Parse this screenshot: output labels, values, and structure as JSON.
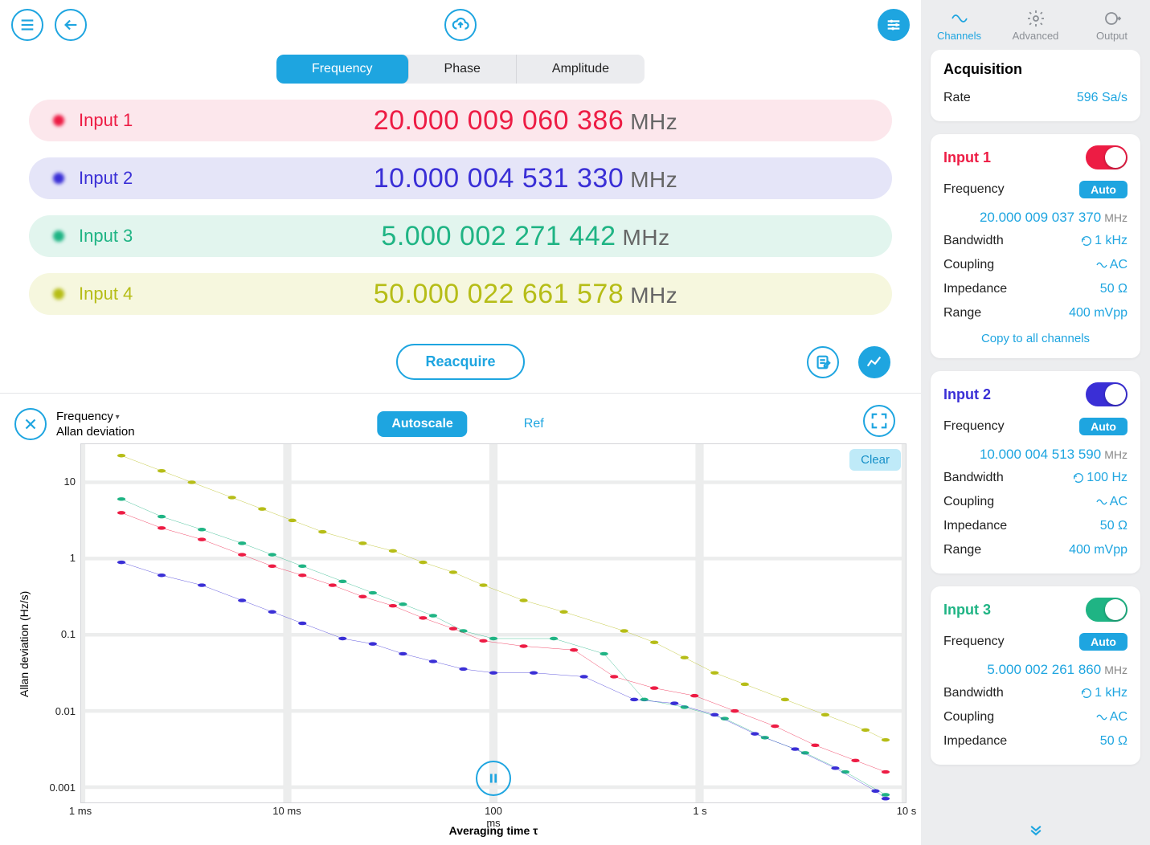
{
  "topbar": {
    "menu_icon": "menu",
    "back_icon": "back",
    "cloud_icon": "cloud-upload",
    "settings_icon": "sliders"
  },
  "tabs": {
    "items": [
      "Frequency",
      "Phase",
      "Amplitude"
    ],
    "active": 0
  },
  "colors": {
    "input1": "#ed1c44",
    "input1_bg": "#fce7ec",
    "input2": "#3a2fd6",
    "input2_bg": "#e5e5f8",
    "input3": "#1fb484",
    "input3_bg": "#e2f5ee",
    "input4": "#b6bd17",
    "input4_bg": "#f6f7de",
    "accent": "#1ea5e0",
    "grid": "#eceded"
  },
  "readings": [
    {
      "label": "Input 1",
      "value": "20.000 009 060 386",
      "unit": "MHz",
      "colorKey": "input1"
    },
    {
      "label": "Input 2",
      "value": "10.000 004 531 330",
      "unit": "MHz",
      "colorKey": "input2"
    },
    {
      "label": "Input 3",
      "value": "5.000 002 271 442",
      "unit": "MHz",
      "colorKey": "input3"
    },
    {
      "label": "Input 4",
      "value": "50.000 022 661 578",
      "unit": "MHz",
      "colorKey": "input4"
    }
  ],
  "reacquire_label": "Reacquire",
  "chart": {
    "selector1": "Frequency",
    "selector2": "Allan deviation",
    "autoscale_label": "Autoscale",
    "ref_label": "Ref",
    "clear_label": "Clear",
    "y_label": "Allan deviation (Hz/s)",
    "x_label": "Averaging time τ",
    "x_ticks": [
      {
        "pos": 0.0,
        "label": "1 ms"
      },
      {
        "pos": 0.25,
        "label": "10 ms"
      },
      {
        "pos": 0.5,
        "label": "100 ms"
      },
      {
        "pos": 0.75,
        "label": "1 s"
      },
      {
        "pos": 1.0,
        "label": "10 s"
      }
    ],
    "y_log_min": -3.2,
    "y_log_max": 1.5,
    "y_ticks": [
      {
        "log": 1,
        "label": "10"
      },
      {
        "log": 0,
        "label": "1"
      },
      {
        "log": -1,
        "label": "0.1"
      },
      {
        "log": -2,
        "label": "0.01"
      },
      {
        "log": -3,
        "label": "0.001"
      }
    ],
    "x_log_min": -3.0,
    "x_log_max": 1.1,
    "series": [
      {
        "colorKey": "input4",
        "points": [
          [
            -2.8,
            1.35
          ],
          [
            -2.6,
            1.15
          ],
          [
            -2.45,
            1.0
          ],
          [
            -2.25,
            0.8
          ],
          [
            -2.1,
            0.65
          ],
          [
            -1.95,
            0.5
          ],
          [
            -1.8,
            0.35
          ],
          [
            -1.6,
            0.2
          ],
          [
            -1.45,
            0.1
          ],
          [
            -1.3,
            -0.05
          ],
          [
            -1.15,
            -0.18
          ],
          [
            -1.0,
            -0.35
          ],
          [
            -0.8,
            -0.55
          ],
          [
            -0.6,
            -0.7
          ],
          [
            -0.3,
            -0.95
          ],
          [
            -0.15,
            -1.1
          ],
          [
            0.0,
            -1.3
          ],
          [
            0.15,
            -1.5
          ],
          [
            0.3,
            -1.65
          ],
          [
            0.5,
            -1.85
          ],
          [
            0.7,
            -2.05
          ],
          [
            0.9,
            -2.25
          ],
          [
            1.0,
            -2.38
          ]
        ]
      },
      {
        "colorKey": "input3",
        "points": [
          [
            -2.8,
            0.78
          ],
          [
            -2.6,
            0.55
          ],
          [
            -2.4,
            0.38
          ],
          [
            -2.2,
            0.2
          ],
          [
            -2.05,
            0.05
          ],
          [
            -1.9,
            -0.1
          ],
          [
            -1.7,
            -0.3
          ],
          [
            -1.55,
            -0.45
          ],
          [
            -1.4,
            -0.6
          ],
          [
            -1.25,
            -0.75
          ],
          [
            -1.1,
            -0.95
          ],
          [
            -0.95,
            -1.05
          ],
          [
            -0.65,
            -1.05
          ],
          [
            -0.4,
            -1.25
          ],
          [
            -0.2,
            -1.85
          ],
          [
            0.0,
            -1.95
          ],
          [
            0.2,
            -2.1
          ],
          [
            0.4,
            -2.35
          ],
          [
            0.6,
            -2.55
          ],
          [
            0.8,
            -2.8
          ],
          [
            1.0,
            -3.1
          ]
        ]
      },
      {
        "colorKey": "input1",
        "points": [
          [
            -2.8,
            0.6
          ],
          [
            -2.6,
            0.4
          ],
          [
            -2.4,
            0.25
          ],
          [
            -2.2,
            0.05
          ],
          [
            -2.05,
            -0.1
          ],
          [
            -1.9,
            -0.22
          ],
          [
            -1.75,
            -0.35
          ],
          [
            -1.6,
            -0.5
          ],
          [
            -1.45,
            -0.62
          ],
          [
            -1.3,
            -0.78
          ],
          [
            -1.15,
            -0.92
          ],
          [
            -1.0,
            -1.08
          ],
          [
            -0.8,
            -1.15
          ],
          [
            -0.55,
            -1.2
          ],
          [
            -0.35,
            -1.55
          ],
          [
            -0.15,
            -1.7
          ],
          [
            0.05,
            -1.8
          ],
          [
            0.25,
            -2.0
          ],
          [
            0.45,
            -2.2
          ],
          [
            0.65,
            -2.45
          ],
          [
            0.85,
            -2.65
          ],
          [
            1.0,
            -2.8
          ]
        ]
      },
      {
        "colorKey": "input2",
        "points": [
          [
            -2.8,
            -0.05
          ],
          [
            -2.6,
            -0.22
          ],
          [
            -2.4,
            -0.35
          ],
          [
            -2.2,
            -0.55
          ],
          [
            -2.05,
            -0.7
          ],
          [
            -1.9,
            -0.85
          ],
          [
            -1.7,
            -1.05
          ],
          [
            -1.55,
            -1.12
          ],
          [
            -1.4,
            -1.25
          ],
          [
            -1.25,
            -1.35
          ],
          [
            -1.1,
            -1.45
          ],
          [
            -0.95,
            -1.5
          ],
          [
            -0.75,
            -1.5
          ],
          [
            -0.5,
            -1.55
          ],
          [
            -0.25,
            -1.85
          ],
          [
            -0.05,
            -1.9
          ],
          [
            0.15,
            -2.05
          ],
          [
            0.35,
            -2.3
          ],
          [
            0.55,
            -2.5
          ],
          [
            0.75,
            -2.75
          ],
          [
            0.95,
            -3.05
          ],
          [
            1.0,
            -3.15
          ]
        ]
      }
    ],
    "marker_radius": 3.2,
    "line_width": 1.5
  },
  "side": {
    "tabs": [
      {
        "label": "Channels",
        "icon": "wave"
      },
      {
        "label": "Advanced",
        "icon": "gear"
      },
      {
        "label": "Output",
        "icon": "output"
      }
    ],
    "active_tab": 0,
    "acquisition": {
      "title": "Acquisition",
      "rate_label": "Rate",
      "rate_value": "596 Sa/s"
    },
    "channels": [
      {
        "name": "Input 1",
        "colorKey": "input1",
        "toggle_on": true,
        "toggle_color": "#ed1c44",
        "freq_label": "Frequency",
        "freq_mode": "Auto",
        "freq_value": "20.000 009 037 370",
        "freq_unit": "MHz",
        "rows": [
          {
            "label": "Bandwidth",
            "icon": "refresh",
            "value": "1 kHz"
          },
          {
            "label": "Coupling",
            "icon": "wave",
            "value": "AC"
          },
          {
            "label": "Impedance",
            "icon": "",
            "value": "50 Ω"
          },
          {
            "label": "Range",
            "icon": "",
            "value": "400 mVpp"
          }
        ],
        "copy_label": "Copy to all channels"
      },
      {
        "name": "Input 2",
        "colorKey": "input2",
        "toggle_on": true,
        "toggle_color": "#3a2fd6",
        "freq_label": "Frequency",
        "freq_mode": "Auto",
        "freq_value": "10.000 004 513 590",
        "freq_unit": "MHz",
        "rows": [
          {
            "label": "Bandwidth",
            "icon": "refresh",
            "value": "100 Hz"
          },
          {
            "label": "Coupling",
            "icon": "wave",
            "value": "AC"
          },
          {
            "label": "Impedance",
            "icon": "",
            "value": "50 Ω"
          },
          {
            "label": "Range",
            "icon": "",
            "value": "400 mVpp"
          }
        ]
      },
      {
        "name": "Input 3",
        "colorKey": "input3",
        "toggle_on": true,
        "toggle_color": "#1fb484",
        "freq_label": "Frequency",
        "freq_mode": "Auto",
        "freq_value": "5.000 002 261 860",
        "freq_unit": "MHz",
        "rows": [
          {
            "label": "Bandwidth",
            "icon": "refresh",
            "value": "1 kHz"
          },
          {
            "label": "Coupling",
            "icon": "wave",
            "value": "AC"
          },
          {
            "label": "Impedance",
            "icon": "",
            "value": "50 Ω"
          }
        ]
      }
    ]
  }
}
